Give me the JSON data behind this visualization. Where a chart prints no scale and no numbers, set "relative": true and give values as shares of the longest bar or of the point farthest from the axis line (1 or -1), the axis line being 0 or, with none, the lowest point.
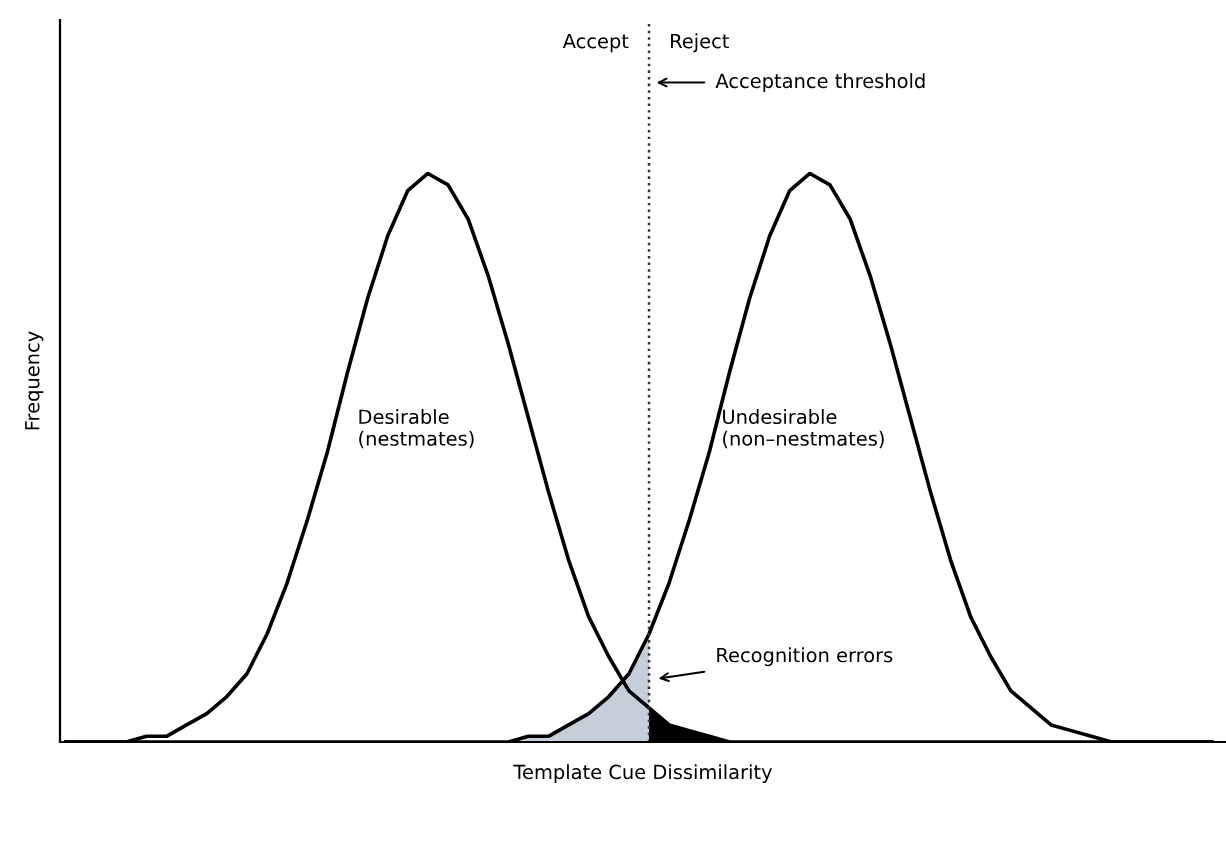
{
  "chart_data": {
    "type": "line",
    "relative": true,
    "xlabel": "Template Cue Dissimilarity",
    "ylabel": "Frequency",
    "categories": [
      null,
      null,
      null,
      null,
      null,
      null,
      null,
      null,
      null,
      null,
      null,
      null,
      null,
      null,
      null,
      null,
      null,
      null,
      null,
      null,
      null,
      null,
      null,
      null,
      null,
      null,
      null,
      null,
      null,
      null,
      null,
      null,
      null,
      null,
      null,
      null,
      null,
      null,
      null,
      null,
      null,
      null,
      null,
      null,
      null,
      null,
      null,
      null,
      null,
      null,
      null,
      null,
      null,
      null,
      null,
      null,
      null,
      null
    ],
    "series": [
      {
        "type": "area",
        "color": "#c5cfd9",
        "values": [
          null,
          null,
          null,
          null,
          null,
          null,
          null,
          null,
          null,
          null,
          null,
          null,
          null,
          null,
          null,
          null,
          null,
          null,
          null,
          null,
          null,
          null,
          0,
          0.01,
          0.01,
          0.03,
          0.05,
          0.08,
          0.12,
          0.19,
          null,
          null,
          null,
          null,
          null,
          null,
          null,
          null,
          null,
          null,
          null,
          null,
          null,
          null,
          null,
          null,
          null,
          null,
          null,
          null,
          null,
          null,
          null,
          null,
          null,
          null,
          null,
          null
        ]
      },
      {
        "type": "area",
        "color": "#000000",
        "values": [
          null,
          null,
          null,
          null,
          null,
          null,
          null,
          null,
          null,
          null,
          null,
          null,
          null,
          null,
          null,
          null,
          null,
          null,
          null,
          null,
          null,
          null,
          null,
          null,
          null,
          null,
          null,
          null,
          null,
          0.06,
          0.03,
          0.02,
          0.01,
          0,
          null,
          null,
          null,
          null,
          null,
          null,
          null,
          null,
          null,
          null,
          null,
          null,
          null,
          null,
          null,
          null,
          null,
          null,
          null,
          null,
          null,
          null,
          null,
          null
        ]
      },
      {
        "color": "#000000",
        "values": [
          0,
          0,
          0,
          0,
          0.01,
          0.01,
          0.03,
          0.05,
          0.08,
          0.12,
          0.19,
          0.28,
          0.39,
          0.51,
          0.65,
          0.78,
          0.89,
          0.97,
          1.0,
          0.98,
          0.92,
          0.82,
          0.7,
          0.57,
          0.44,
          0.32,
          0.22,
          0.15,
          0.09,
          0.06,
          0.03,
          0.02,
          0.01,
          0,
          0,
          0,
          0,
          0,
          0,
          0,
          0,
          0,
          0,
          0,
          0,
          0,
          0,
          0,
          0,
          0,
          0,
          0,
          0,
          0,
          0,
          0,
          0,
          0
        ]
      },
      {
        "color": "#000000",
        "values": [
          0,
          0,
          0,
          0,
          0,
          0,
          0,
          0,
          0,
          0,
          0,
          0,
          0,
          0,
          0,
          0,
          0,
          0,
          0,
          0,
          0,
          0,
          0,
          0.01,
          0.01,
          0.03,
          0.05,
          0.08,
          0.12,
          0.19,
          0.28,
          0.39,
          0.51,
          0.65,
          0.78,
          0.89,
          0.97,
          1.0,
          0.98,
          0.92,
          0.82,
          0.7,
          0.57,
          0.44,
          0.32,
          0.22,
          0.15,
          0.09,
          0.06,
          0.03,
          0.02,
          0.01,
          0,
          0,
          0,
          0,
          0,
          0
        ]
      }
    ],
    "annotations": [
      "Accept",
      "Reject",
      "Acceptance threshold",
      "Desirable\n(nestmates)",
      "Undesirable\n(non–nestmates)",
      "Recognition errors"
    ],
    "marker": "none",
    "line_style": "solid"
  }
}
